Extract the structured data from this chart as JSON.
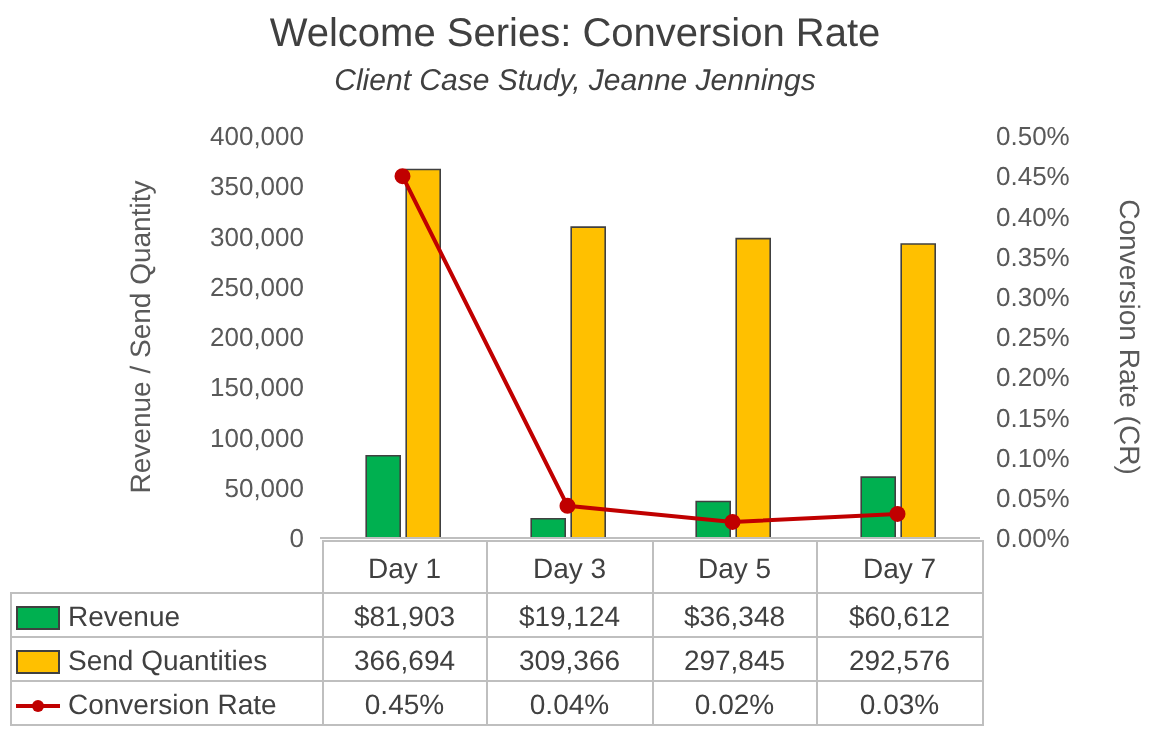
{
  "chart_data": {
    "type": "bar",
    "title": "Welcome Series: Conversion Rate",
    "subtitle": "Client Case Study, Jeanne Jennings",
    "ylabel": "Revenue / Send Quantity",
    "y2label": "Conversion Rate (CR)",
    "categories": [
      "Day 1",
      "Day 3",
      "Day 5",
      "Day 7"
    ],
    "series": [
      {
        "name": "Revenue",
        "color": "#00b050",
        "values": [
          81903,
          19124,
          36348,
          60612
        ],
        "value_labels": [
          "$81,903",
          "$19,124",
          "$36,348",
          "$60,612"
        ]
      },
      {
        "name": "Send Quantities",
        "color": "#ffc000",
        "values": [
          366694,
          309366,
          297845,
          292576
        ],
        "value_labels": [
          "366,694",
          "309,366",
          "297,845",
          "292,576"
        ]
      },
      {
        "name": "Conversion Rate",
        "type": "line",
        "axis": "y2",
        "color": "#c00000",
        "values": [
          0.45,
          0.04,
          0.02,
          0.03
        ],
        "value_labels": [
          "0.45%",
          "0.04%",
          "0.02%",
          "0.03%"
        ]
      }
    ],
    "ylim": [
      0,
      400000
    ],
    "yticks": [
      {
        "value": 0,
        "label": "0"
      },
      {
        "value": 50000,
        "label": "50,000"
      },
      {
        "value": 100000,
        "label": "100,000"
      },
      {
        "value": 150000,
        "label": "150,000"
      },
      {
        "value": 200000,
        "label": "200,000"
      },
      {
        "value": 250000,
        "label": "250,000"
      },
      {
        "value": 300000,
        "label": "300,000"
      },
      {
        "value": 350000,
        "label": "350,000"
      },
      {
        "value": 400000,
        "label": "400,000"
      }
    ],
    "y2lim": [
      0,
      0.5
    ],
    "y2ticks": [
      {
        "value": 0,
        "label": "0.00%"
      },
      {
        "value": 0.05,
        "label": "0.05%"
      },
      {
        "value": 0.1,
        "label": "0.10%"
      },
      {
        "value": 0.15,
        "label": "0.15%"
      },
      {
        "value": 0.2,
        "label": "0.20%"
      },
      {
        "value": 0.25,
        "label": "0.25%"
      },
      {
        "value": 0.3,
        "label": "0.30%"
      },
      {
        "value": 0.35,
        "label": "0.35%"
      },
      {
        "value": 0.4,
        "label": "0.40%"
      },
      {
        "value": 0.45,
        "label": "0.45%"
      },
      {
        "value": 0.5,
        "label": "0.50%"
      }
    ],
    "legend": "bottom",
    "marker": "circle"
  }
}
